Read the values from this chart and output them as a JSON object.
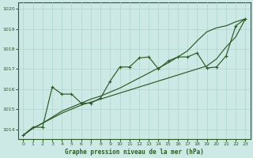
{
  "xlabel": "Graphe pression niveau de la mer (hPa)",
  "bg_color": "#cce9e5",
  "line_color": "#2d5a27",
  "grid_color": "#b0d4ce",
  "hours": [
    0,
    1,
    2,
    3,
    4,
    5,
    6,
    7,
    8,
    9,
    10,
    11,
    12,
    13,
    14,
    15,
    16,
    17,
    18,
    19,
    20,
    21,
    22,
    23
  ],
  "pressure": [
    1013.7,
    1014.1,
    1014.1,
    1016.1,
    1015.75,
    1015.75,
    1015.3,
    1015.3,
    1015.55,
    1016.4,
    1017.1,
    1017.1,
    1017.55,
    1017.6,
    1017.0,
    1017.4,
    1017.6,
    1017.6,
    1017.8,
    1017.05,
    1017.1,
    1017.65,
    1019.15,
    1019.5
  ],
  "lower_line": [
    1013.7,
    1014.05,
    1014.3,
    1014.55,
    1014.8,
    1015.0,
    1015.2,
    1015.35,
    1015.5,
    1015.65,
    1015.8,
    1015.95,
    1016.1,
    1016.25,
    1016.4,
    1016.55,
    1016.7,
    1016.85,
    1017.0,
    1017.15,
    1017.5,
    1018.1,
    1018.6,
    1019.5
  ],
  "upper_line": [
    1013.7,
    1014.05,
    1014.3,
    1014.6,
    1014.9,
    1015.1,
    1015.3,
    1015.5,
    1015.65,
    1015.85,
    1016.05,
    1016.3,
    1016.55,
    1016.8,
    1017.05,
    1017.3,
    1017.6,
    1017.9,
    1018.4,
    1018.85,
    1019.05,
    1019.15,
    1019.35,
    1019.5
  ],
  "ylim": [
    1013.5,
    1020.3
  ],
  "yticks": [
    1014,
    1015,
    1016,
    1017,
    1018,
    1019,
    1020
  ],
  "xticks": [
    0,
    1,
    2,
    3,
    4,
    5,
    6,
    7,
    8,
    9,
    10,
    11,
    12,
    13,
    14,
    15,
    16,
    17,
    18,
    19,
    20,
    21,
    22,
    23
  ]
}
